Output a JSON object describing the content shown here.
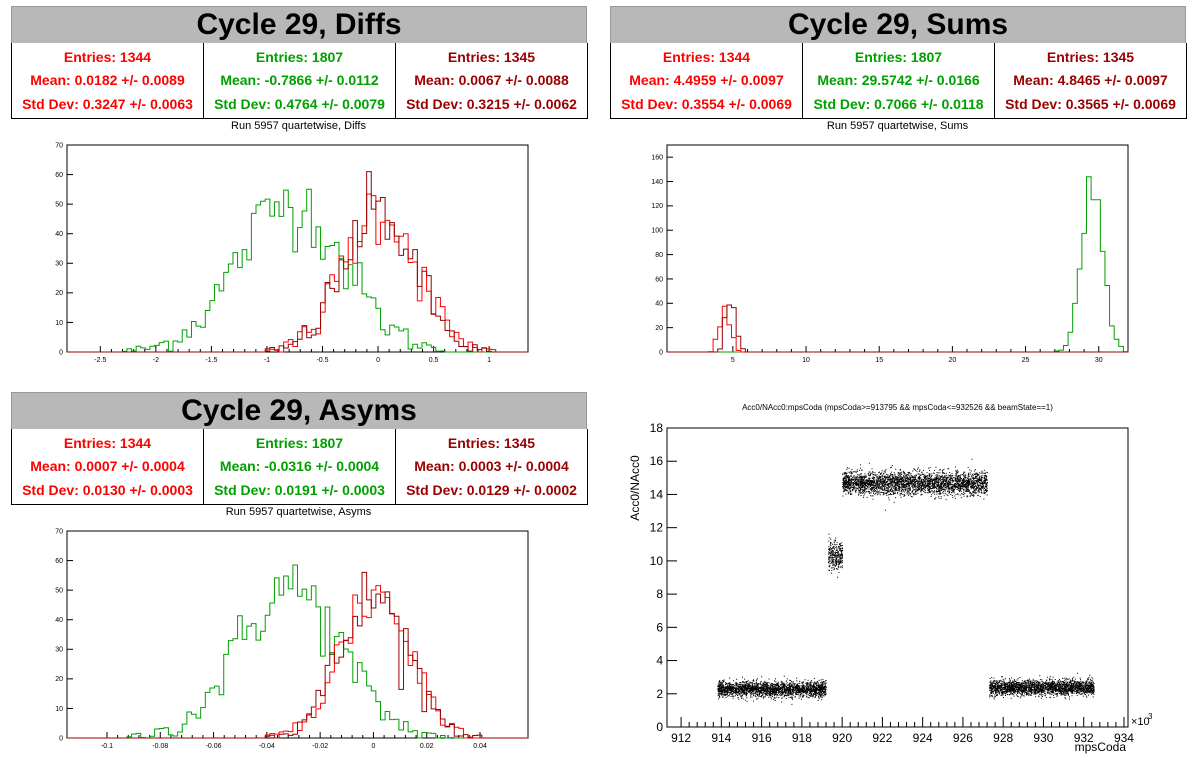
{
  "panels": [
    {
      "title": "Cycle 29, Diffs",
      "subtitle": "Run 5957 quartetwise, Diffs",
      "stats": [
        {
          "entries": "Entries: 1344",
          "mean": "Mean: 0.0182 +/- 0.0089",
          "std": "Std Dev: 0.3247 +/- 0.0063",
          "color": "#ff0000"
        },
        {
          "entries": "Entries: 1807",
          "mean": "Mean: -0.7866 +/- 0.0112",
          "std": "Std Dev: 0.4764 +/- 0.0079",
          "color": "#00a000"
        },
        {
          "entries": "Entries: 1345",
          "mean": "Mean: 0.0067 +/- 0.0088",
          "std": "Std Dev: 0.3215 +/- 0.0062",
          "color": "#990000"
        }
      ]
    },
    {
      "title": "Cycle 29, Sums",
      "subtitle": "Run 5957 quartetwise, Sums",
      "stats": [
        {
          "entries": "Entries: 1344",
          "mean": "Mean: 4.4959 +/- 0.0097",
          "std": "Std Dev: 0.3554 +/- 0.0069",
          "color": "#ff0000"
        },
        {
          "entries": "Entries: 1807",
          "mean": "Mean: 29.5742 +/- 0.0166",
          "std": "Std Dev: 0.7066 +/- 0.0118",
          "color": "#00a000"
        },
        {
          "entries": "Entries: 1345",
          "mean": "Mean: 4.8465 +/- 0.0097",
          "std": "Std Dev: 0.3565 +/- 0.0069",
          "color": "#990000"
        }
      ]
    },
    {
      "title": "Cycle 29, Asyms",
      "subtitle": "Run 5957 quartetwise, Asyms",
      "stats": [
        {
          "entries": "Entries: 1344",
          "mean": "Mean: 0.0007 +/- 0.0004",
          "std": "Std Dev: 0.0130 +/- 0.0003",
          "color": "#ff0000"
        },
        {
          "entries": "Entries: 1807",
          "mean": "Mean: -0.0316 +/- 0.0004",
          "std": "Std Dev: 0.0191 +/- 0.0003",
          "color": "#00a000"
        },
        {
          "entries": "Entries: 1345",
          "mean": "Mean: 0.0003 +/- 0.0004",
          "std": "Std Dev: 0.0129 +/- 0.0002",
          "color": "#990000"
        }
      ]
    }
  ],
  "colors": {
    "red": "#ff0000",
    "green": "#00a000",
    "darkred": "#990000"
  },
  "chart_data": [
    {
      "type": "histogram",
      "xlim": [
        -2.8,
        1.35
      ],
      "ylim": [
        0,
        70
      ],
      "xticks": [
        -2.5,
        -2,
        -1.5,
        -1,
        -0.5,
        0,
        0.5,
        1
      ],
      "xtick_labels": [
        "-2.5",
        "-2",
        "-1.5",
        "-1",
        "-0.5",
        "0",
        "0.5",
        "1"
      ],
      "yticks": [
        0,
        10,
        20,
        30,
        40,
        50,
        60,
        70
      ],
      "ytick_labels": [
        "0",
        "10",
        "20",
        "30",
        "40",
        "50",
        "60",
        "70"
      ],
      "series": [
        {
          "color": "#00a000",
          "mean": -0.7866,
          "sigma": 0.4764,
          "peak": 62
        },
        {
          "color": "#ff0000",
          "mean": 0.0182,
          "sigma": 0.3247,
          "peak": 60
        },
        {
          "color": "#990000",
          "mean": 0.0067,
          "sigma": 0.3215,
          "peak": 58
        }
      ]
    },
    {
      "type": "histogram",
      "xlim": [
        0.5,
        32
      ],
      "ylim": [
        0,
        170
      ],
      "xticks": [
        5,
        10,
        15,
        20,
        25,
        30
      ],
      "xtick_labels": [
        "5",
        "10",
        "15",
        "20",
        "25",
        "30"
      ],
      "yticks": [
        0,
        20,
        40,
        60,
        80,
        100,
        120,
        140,
        160
      ],
      "ytick_labels": [
        "0",
        "20",
        "40",
        "60",
        "80",
        "100",
        "120",
        "140",
        "160"
      ],
      "series": [
        {
          "color": "#00a000",
          "mean": 29.5742,
          "sigma": 0.7066,
          "peak": 165
        },
        {
          "color": "#ff0000",
          "mean": 4.4959,
          "sigma": 0.3554,
          "peak": 49
        },
        {
          "color": "#990000",
          "mean": 4.8465,
          "sigma": 0.3565,
          "peak": 46
        }
      ]
    },
    {
      "type": "histogram",
      "xlim": [
        -0.115,
        0.058
      ],
      "ylim": [
        0,
        70
      ],
      "xticks": [
        -0.1,
        -0.08,
        -0.06,
        -0.04,
        -0.02,
        0,
        0.02,
        0.04
      ],
      "xtick_labels": [
        "-0.1",
        "-0.08",
        "-0.06",
        "-0.04",
        "-0.02",
        "0",
        "0.02",
        "0.04"
      ],
      "yticks": [
        0,
        10,
        20,
        30,
        40,
        50,
        60,
        70
      ],
      "ytick_labels": [
        "0",
        "10",
        "20",
        "30",
        "40",
        "50",
        "60",
        "70"
      ],
      "series": [
        {
          "color": "#00a000",
          "mean": -0.0316,
          "sigma": 0.0191,
          "peak": 62
        },
        {
          "color": "#ff0000",
          "mean": 0.0007,
          "sigma": 0.013,
          "peak": 60
        },
        {
          "color": "#990000",
          "mean": 0.0003,
          "sigma": 0.0129,
          "peak": 58
        }
      ]
    },
    {
      "type": "scatter",
      "title": "Acc0/NAcc0:mpsCoda (mpsCoda>=913795 && mpsCoda<=932526 && beamState==1)",
      "xlabel": "mpsCoda",
      "ylabel": "Acc0/NAcc0",
      "x_multiplier_label": "×10",
      "x_multiplier_exp": "3",
      "xlim": [
        911.3,
        934.2
      ],
      "ylim": [
        0,
        18
      ],
      "xticks": [
        912,
        914,
        916,
        918,
        920,
        922,
        924,
        926,
        928,
        930,
        932,
        934
      ],
      "xtick_labels": [
        "912",
        "914",
        "916",
        "918",
        "920",
        "922",
        "924",
        "926",
        "928",
        "930",
        "932",
        "934"
      ],
      "yticks": [
        0,
        2,
        4,
        6,
        8,
        10,
        12,
        14,
        16,
        18
      ],
      "ytick_labels": [
        "0",
        "2",
        "4",
        "6",
        "8",
        "10",
        "12",
        "14",
        "16",
        "18"
      ],
      "clusters": [
        {
          "x_from": 913.8,
          "x_to": 919.2,
          "y_center": 2.3,
          "y_spread": 0.5
        },
        {
          "x_from": 919.3,
          "x_to": 920.0,
          "y_center": 10.3,
          "y_spread": 1.0
        },
        {
          "x_from": 920.0,
          "x_to": 927.2,
          "y_center": 14.7,
          "y_spread": 0.75
        },
        {
          "x_from": 927.3,
          "x_to": 932.5,
          "y_center": 2.4,
          "y_spread": 0.5
        }
      ]
    }
  ]
}
